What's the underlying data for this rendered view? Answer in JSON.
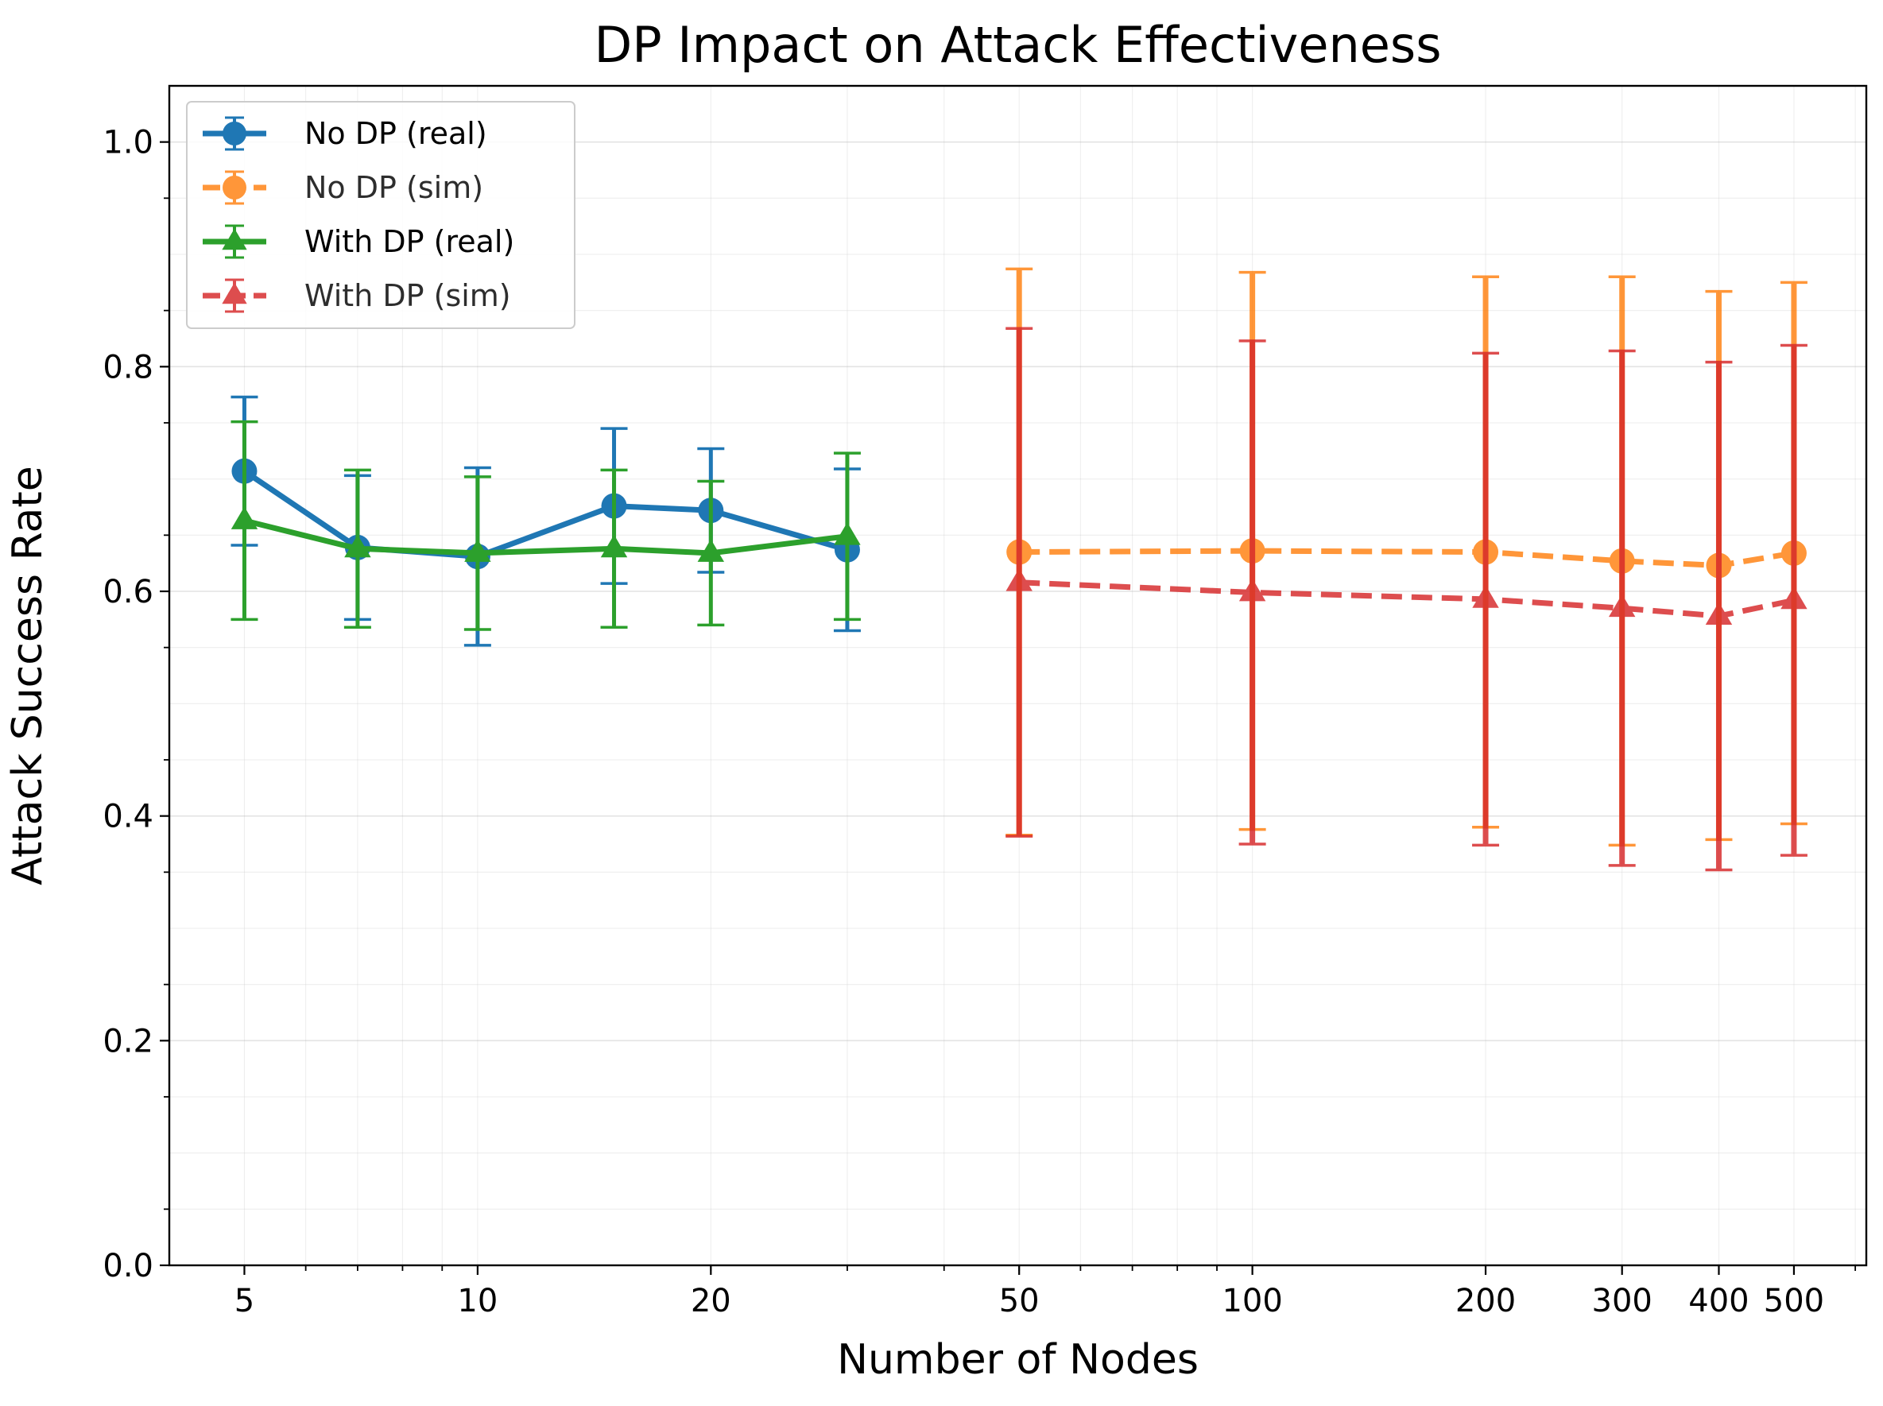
{
  "chart_data": {
    "type": "line",
    "title": "DP Impact on Attack Effectiveness",
    "xlabel": "Number of Nodes",
    "ylabel": "Attack Success Rate",
    "xscale": "log",
    "xlim": [
      4,
      620
    ],
    "ylim": [
      0,
      1.05
    ],
    "xticks": [
      5,
      10,
      20,
      50,
      100,
      200,
      300,
      400,
      500
    ],
    "xtick_labels": [
      "5",
      "10",
      "20",
      "50",
      "100",
      "200",
      "300",
      "400",
      "500"
    ],
    "yticks": [
      0.0,
      0.2,
      0.4,
      0.6,
      0.8,
      1.0
    ],
    "ytick_labels": [
      "0.0",
      "0.2",
      "0.4",
      "0.6",
      "0.8",
      "1.0"
    ],
    "grid": true,
    "legend_position": "top-left",
    "series": [
      {
        "name": "No DP (real)",
        "color": "#1f77b4",
        "marker": "circle",
        "linestyle": "solid",
        "x": [
          5,
          7,
          10,
          15,
          20,
          30
        ],
        "y": [
          0.707,
          0.639,
          0.631,
          0.676,
          0.672,
          0.637
        ],
        "err": [
          0.066,
          0.064,
          0.079,
          0.069,
          0.055,
          0.072
        ]
      },
      {
        "name": "No DP (sim)",
        "color": "#ff7f0e",
        "marker": "circle",
        "linestyle": "dashed",
        "x": [
          50,
          100,
          200,
          300,
          400,
          500
        ],
        "y": [
          0.635,
          0.636,
          0.635,
          0.627,
          0.623,
          0.634
        ],
        "err": [
          0.252,
          0.248,
          0.245,
          0.253,
          0.244,
          0.241
        ]
      },
      {
        "name": "With DP (real)",
        "color": "#2ca02c",
        "marker": "triangle",
        "linestyle": "solid",
        "x": [
          5,
          7,
          10,
          15,
          20,
          30
        ],
        "y": [
          0.663,
          0.638,
          0.634,
          0.638,
          0.634,
          0.649
        ],
        "err": [
          0.088,
          0.07,
          0.068,
          0.07,
          0.064,
          0.074
        ]
      },
      {
        "name": "With DP (sim)",
        "color": "#d62728",
        "marker": "triangle",
        "linestyle": "dashed",
        "x": [
          50,
          100,
          200,
          300,
          400,
          500
        ],
        "y": [
          0.608,
          0.599,
          0.593,
          0.585,
          0.578,
          0.592
        ],
        "err": [
          0.226,
          0.224,
          0.219,
          0.229,
          0.226,
          0.227
        ]
      }
    ]
  }
}
